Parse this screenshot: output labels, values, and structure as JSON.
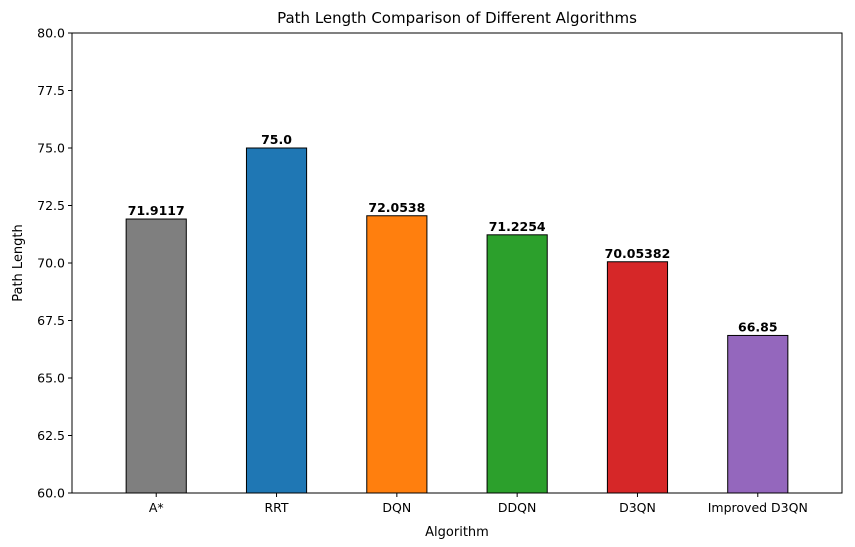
{
  "chart_data": {
    "type": "bar",
    "title": "Path Length Comparison of Different Algorithms",
    "xlabel": "Algorithm",
    "ylabel": "Path Length",
    "categories": [
      "A*",
      "RRT",
      "DQN",
      "DDQN",
      "D3QN",
      "Improved D3QN"
    ],
    "values": [
      71.9117,
      75.0,
      72.0538,
      71.2254,
      70.05382,
      66.85
    ],
    "value_labels": [
      "71.9117",
      "75.0",
      "72.0538",
      "71.2254",
      "70.05382",
      "66.85"
    ],
    "colors": [
      "#7f7f7f",
      "#1f77b4",
      "#ff7f0e",
      "#2ca02c",
      "#d62728",
      "#9467bd"
    ],
    "bar_edge_color": "#000000",
    "ylim": [
      60,
      80
    ],
    "yticks": [
      60.0,
      62.5,
      65.0,
      67.5,
      70.0,
      72.5,
      75.0,
      77.5,
      80.0
    ],
    "ytick_labels": [
      "60.0",
      "62.5",
      "65.0",
      "67.5",
      "70.0",
      "72.5",
      "75.0",
      "77.5",
      "80.0"
    ],
    "grid": false,
    "legend": "none"
  }
}
